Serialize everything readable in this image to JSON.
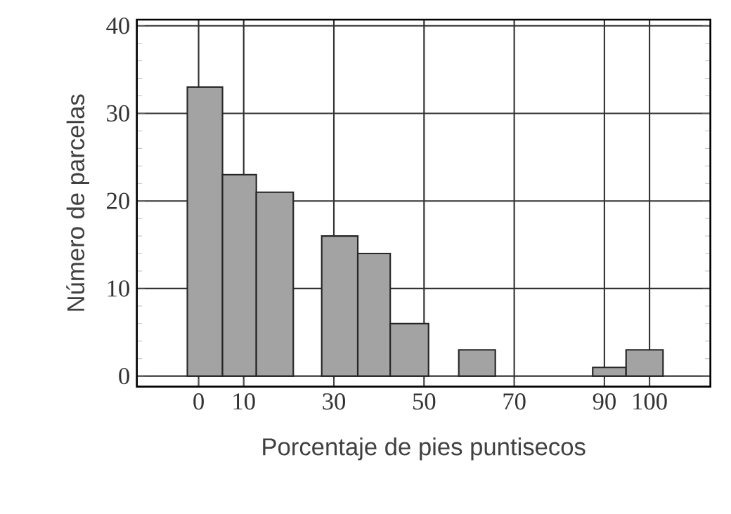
{
  "chart_data": {
    "type": "histogram",
    "xlabel": "Porcentaje de pies puntisecos",
    "ylabel": "Número de parcelas",
    "bins": [
      -2.5,
      5.3,
      12.8,
      21,
      27.3,
      35.3,
      42.5,
      51,
      57.7,
      65.8,
      87.4,
      94.8,
      103
    ],
    "values": [
      33,
      23,
      21,
      null,
      16,
      14,
      6,
      null,
      3,
      null,
      1,
      3
    ],
    "color": "#a3a3a3",
    "xlim": [
      -13.7,
      113.5
    ],
    "xticks": [
      0,
      10,
      30,
      50,
      70,
      90,
      100
    ],
    "ylim": [
      -1.2,
      40.7
    ],
    "yticks": [
      0,
      10,
      20,
      30,
      40
    ],
    "grid": true
  }
}
